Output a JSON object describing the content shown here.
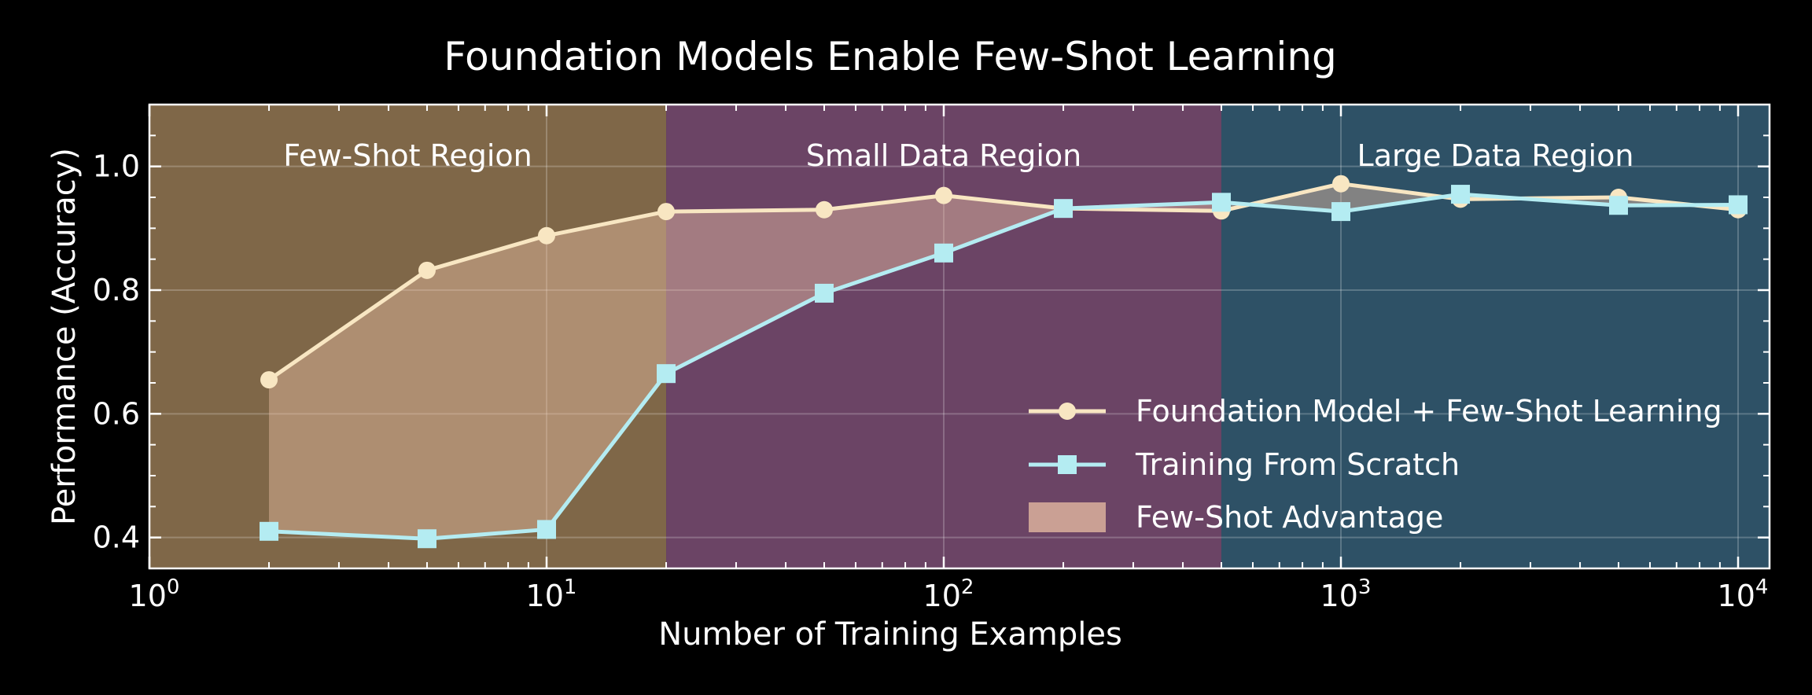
{
  "chart_data": {
    "type": "line",
    "title": "Foundation Models Enable Few-Shot Learning",
    "xlabel": "Number of Training Examples",
    "ylabel": "Performance (Accuracy)",
    "xscale": "log",
    "xlim": [
      1,
      12000
    ],
    "ylim": [
      0.35,
      1.1
    ],
    "xticks": [
      {
        "value": 1,
        "base": "10",
        "exp": "0"
      },
      {
        "value": 10,
        "base": "10",
        "exp": "1"
      },
      {
        "value": 100,
        "base": "10",
        "exp": "2"
      },
      {
        "value": 1000,
        "base": "10",
        "exp": "3"
      },
      {
        "value": 10000,
        "base": "10",
        "exp": "4"
      }
    ],
    "yticks": [
      {
        "value": 0.4,
        "label": "0.4"
      },
      {
        "value": 0.6,
        "label": "0.6"
      },
      {
        "value": 0.8,
        "label": "0.8"
      },
      {
        "value": 1.0,
        "label": "1.0"
      }
    ],
    "grid": true,
    "regions": [
      {
        "label": "Few-Shot Region",
        "x_from": 1,
        "x_to": 20,
        "color": "#7f6748"
      },
      {
        "label": "Small Data Region",
        "x_from": 20,
        "x_to": 500,
        "color": "#6b4465"
      },
      {
        "label": "Large Data Region",
        "x_from": 500,
        "x_to": 12000,
        "color": "#2e5166"
      }
    ],
    "x": [
      2,
      5,
      10,
      20,
      50,
      100,
      200,
      500,
      1000,
      2000,
      5000,
      10000
    ],
    "series": [
      {
        "name": "Foundation Model + Few-Shot Learning",
        "marker": "circle",
        "color": "#f8e6c2",
        "values": [
          0.655,
          0.832,
          0.888,
          0.927,
          0.93,
          0.953,
          0.932,
          0.928,
          0.972,
          0.947,
          0.95,
          0.93
        ]
      },
      {
        "name": "Training From Scratch",
        "marker": "square",
        "color": "#b4ecf2",
        "values": [
          0.41,
          0.398,
          0.413,
          0.665,
          0.795,
          0.86,
          0.932,
          0.942,
          0.927,
          0.955,
          0.937,
          0.938
        ]
      }
    ],
    "fill_between": {
      "name": "Few-Shot Advantage",
      "color": "#e9bfa4",
      "opacity": 0.45
    },
    "legend_position": "lower-right"
  }
}
